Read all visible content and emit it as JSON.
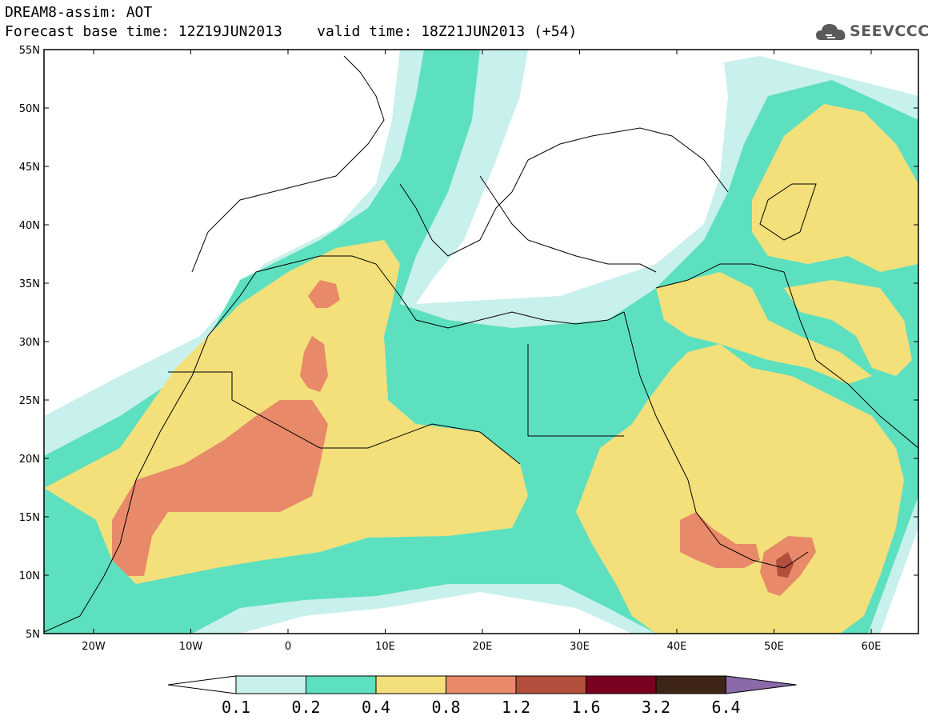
{
  "header": {
    "title": "DREAM8-assim: AOT",
    "base_time_label": "Forecast base time:",
    "base_time": "12Z19JUN2013",
    "valid_time_label": "valid time:",
    "valid_time": "18Z21JUN2013 (+54)"
  },
  "logo": {
    "text": "SEEVCCC",
    "icon": "cloud-icon"
  },
  "axes": {
    "lat_labels": [
      "55N",
      "50N",
      "45N",
      "40N",
      "35N",
      "30N",
      "25N",
      "20N",
      "15N",
      "10N",
      "5N"
    ],
    "lon_labels": [
      "20W",
      "10W",
      "0",
      "10E",
      "20E",
      "30E",
      "40E",
      "50E",
      "60E"
    ]
  },
  "colorbar": {
    "labels": [
      "0.1",
      "0.2",
      "0.4",
      "0.8",
      "1.2",
      "1.6",
      "3.2",
      "6.4"
    ],
    "colors": [
      "#ffffff",
      "#c8f0ec",
      "#5de0c0",
      "#f3e07a",
      "#e8896a",
      "#b24e3c",
      "#7a0020",
      "#3e2417",
      "#8a6aa8"
    ]
  },
  "legend_colors": {
    "c01": "#c8f0ec",
    "c02": "#5de0c0",
    "c04": "#f3e07a",
    "c08": "#e8896a",
    "c12": "#b24e3c",
    "c16": "#7a0020"
  }
}
